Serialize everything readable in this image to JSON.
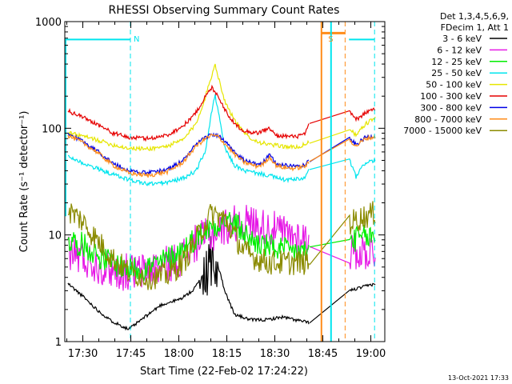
{
  "chart_data": {
    "type": "line",
    "title": "RHESSI Observing Summary Count Rates",
    "xlabel": "Start Time (22-Feb-02 17:24:22)",
    "ylabel": "Count Rate (s⁻¹ detector⁻¹)",
    "y_scale": "log",
    "ylim": [
      1,
      1000
    ],
    "xlim_minutes": [
      0,
      100
    ],
    "x_tick_labels": [
      "17:30",
      "17:45",
      "18:00",
      "18:15",
      "18:30",
      "18:45",
      "19:00"
    ],
    "x_tick_minutes": [
      5.63,
      20.63,
      35.63,
      50.63,
      65.63,
      80.63,
      95.63
    ],
    "y_tick_labels": [
      "1",
      "10",
      "100",
      "1000"
    ],
    "y_tick_values": [
      1,
      10,
      100,
      1000
    ],
    "legend_header": [
      "Det 1,3,4,5,6,9,",
      "FDecim 1, Att 1"
    ],
    "footer_date": "13-Oct-2021 17:33",
    "annotations": [
      {
        "text": "N",
        "color": "#00e5ee",
        "minute": 20.5
      },
      {
        "text": "S",
        "color": "#ff8c1a",
        "minute": 81.3
      }
    ],
    "series": [
      {
        "name": "3 - 6 keV",
        "color": "#000000",
        "points": [
          [
            1,
            3.5
          ],
          [
            6,
            2.6
          ],
          [
            10,
            2
          ],
          [
            14,
            1.6
          ],
          [
            20,
            1.3
          ],
          [
            25,
            1.7
          ],
          [
            30,
            2.2
          ],
          [
            36,
            2.5
          ],
          [
            40,
            3
          ],
          [
            44,
            4.5
          ],
          [
            46,
            6
          ],
          [
            48,
            5
          ],
          [
            50,
            3
          ],
          [
            53,
            1.8
          ],
          [
            58,
            1.6
          ],
          [
            63,
            1.6
          ],
          [
            68,
            1.7
          ],
          [
            72,
            1.6
          ],
          [
            76.5,
            1.5
          ],
          [
            89,
            3
          ],
          [
            94,
            3.3
          ],
          [
            97,
            3.5
          ]
        ]
      },
      {
        "name": "6 - 12 keV",
        "color": "#e619e6",
        "points": [
          [
            1,
            7
          ],
          [
            6,
            6
          ],
          [
            12,
            5
          ],
          [
            18,
            4.5
          ],
          [
            24,
            4.5
          ],
          [
            30,
            5
          ],
          [
            36,
            6
          ],
          [
            42,
            9
          ],
          [
            46,
            10
          ],
          [
            50,
            12
          ],
          [
            54,
            13
          ],
          [
            58,
            13
          ],
          [
            62,
            12
          ],
          [
            66,
            11
          ],
          [
            70,
            10
          ],
          [
            74,
            9.5
          ],
          [
            76.5,
            9
          ],
          [
            89,
            7
          ],
          [
            94,
            7
          ],
          [
            97,
            7
          ]
        ]
      },
      {
        "name": "12 - 25 keV",
        "color": "#00ee00",
        "points": [
          [
            1,
            9
          ],
          [
            6,
            8
          ],
          [
            12,
            6
          ],
          [
            18,
            5
          ],
          [
            24,
            4.8
          ],
          [
            30,
            5.5
          ],
          [
            36,
            7
          ],
          [
            42,
            10
          ],
          [
            46,
            12
          ],
          [
            50,
            14
          ],
          [
            54,
            12
          ],
          [
            58,
            9
          ],
          [
            62,
            8
          ],
          [
            66,
            7.5
          ],
          [
            70,
            7
          ],
          [
            74,
            7
          ],
          [
            76.5,
            7
          ],
          [
            89,
            9
          ],
          [
            94,
            9.5
          ],
          [
            97,
            9.5
          ]
        ]
      },
      {
        "name": "25 - 50 keV",
        "color": "#00e5ee",
        "points": [
          [
            1,
            55
          ],
          [
            5,
            48
          ],
          [
            10,
            42
          ],
          [
            15,
            37
          ],
          [
            20,
            33
          ],
          [
            26,
            30
          ],
          [
            32,
            31
          ],
          [
            37,
            34
          ],
          [
            41,
            40
          ],
          [
            44,
            62
          ],
          [
            46,
            150
          ],
          [
            47,
            200
          ],
          [
            48,
            140
          ],
          [
            50,
            65
          ],
          [
            53,
            45
          ],
          [
            56,
            40
          ],
          [
            60,
            38
          ],
          [
            64,
            36
          ],
          [
            68,
            33
          ],
          [
            72,
            33
          ],
          [
            75,
            34
          ],
          [
            76.5,
            42
          ],
          [
            89,
            50
          ],
          [
            91,
            35
          ],
          [
            94,
            48
          ],
          [
            97,
            50
          ]
        ]
      },
      {
        "name": "50 - 100 keV",
        "color": "#e6e600",
        "points": [
          [
            1,
            90
          ],
          [
            5,
            85
          ],
          [
            10,
            78
          ],
          [
            15,
            70
          ],
          [
            20,
            65
          ],
          [
            26,
            64
          ],
          [
            32,
            68
          ],
          [
            37,
            78
          ],
          [
            41,
            110
          ],
          [
            44,
            200
          ],
          [
            46,
            320
          ],
          [
            47,
            400
          ],
          [
            48,
            300
          ],
          [
            50,
            180
          ],
          [
            53,
            120
          ],
          [
            56,
            90
          ],
          [
            60,
            75
          ],
          [
            64,
            70
          ],
          [
            68,
            68
          ],
          [
            72,
            66
          ],
          [
            75,
            70
          ],
          [
            76.5,
            75
          ],
          [
            89,
            100
          ],
          [
            91,
            85
          ],
          [
            94,
            110
          ],
          [
            97,
            125
          ]
        ]
      },
      {
        "name": "100 - 300 keV",
        "color": "#e60000",
        "points": [
          [
            1,
            145
          ],
          [
            5,
            130
          ],
          [
            10,
            110
          ],
          [
            15,
            90
          ],
          [
            20,
            82
          ],
          [
            26,
            80
          ],
          [
            32,
            86
          ],
          [
            37,
            105
          ],
          [
            41,
            140
          ],
          [
            44,
            200
          ],
          [
            46,
            240
          ],
          [
            47,
            220
          ],
          [
            48,
            200
          ],
          [
            50,
            150
          ],
          [
            53,
            110
          ],
          [
            56,
            95
          ],
          [
            60,
            90
          ],
          [
            64,
            100
          ],
          [
            66,
            85
          ],
          [
            68,
            85
          ],
          [
            72,
            83
          ],
          [
            75,
            88
          ],
          [
            76.5,
            110
          ],
          [
            89,
            145
          ],
          [
            91,
            120
          ],
          [
            94,
            140
          ],
          [
            97,
            150
          ]
        ]
      },
      {
        "name": "300 - 800 keV",
        "color": "#0000e6",
        "points": [
          [
            1,
            88
          ],
          [
            5,
            78
          ],
          [
            10,
            62
          ],
          [
            15,
            47
          ],
          [
            20,
            40
          ],
          [
            26,
            38
          ],
          [
            32,
            41
          ],
          [
            37,
            50
          ],
          [
            41,
            70
          ],
          [
            44,
            82
          ],
          [
            46,
            88
          ],
          [
            48,
            85
          ],
          [
            50,
            75
          ],
          [
            53,
            60
          ],
          [
            56,
            50
          ],
          [
            60,
            46
          ],
          [
            62,
            48
          ],
          [
            64,
            56
          ],
          [
            66,
            47
          ],
          [
            68,
            45
          ],
          [
            72,
            44
          ],
          [
            75,
            46
          ],
          [
            76.5,
            50
          ],
          [
            89,
            80
          ],
          [
            91,
            70
          ],
          [
            94,
            82
          ],
          [
            97,
            85
          ]
        ]
      },
      {
        "name": "800 - 7000 keV",
        "color": "#ff8c1a",
        "points": [
          [
            1,
            85
          ],
          [
            5,
            75
          ],
          [
            10,
            60
          ],
          [
            15,
            45
          ],
          [
            20,
            38
          ],
          [
            26,
            36
          ],
          [
            32,
            39
          ],
          [
            37,
            48
          ],
          [
            41,
            68
          ],
          [
            44,
            80
          ],
          [
            46,
            86
          ],
          [
            48,
            83
          ],
          [
            50,
            72
          ],
          [
            53,
            57
          ],
          [
            56,
            48
          ],
          [
            60,
            44
          ],
          [
            62,
            46
          ],
          [
            64,
            54
          ],
          [
            66,
            45
          ],
          [
            68,
            43
          ],
          [
            72,
            42
          ],
          [
            75,
            44
          ],
          [
            76.5,
            48
          ],
          [
            89,
            78
          ],
          [
            91,
            68
          ],
          [
            94,
            80
          ],
          [
            97,
            83
          ]
        ]
      },
      {
        "name": "7000 - 15000 keV",
        "color": "#8b8b00",
        "points": [
          [
            1,
            17
          ],
          [
            5,
            14
          ],
          [
            10,
            9
          ],
          [
            15,
            6
          ],
          [
            20,
            4.5
          ],
          [
            26,
            4
          ],
          [
            32,
            4.2
          ],
          [
            37,
            5.5
          ],
          [
            41,
            9
          ],
          [
            44,
            13
          ],
          [
            46,
            16
          ],
          [
            48,
            15
          ],
          [
            50,
            14
          ],
          [
            53,
            10
          ],
          [
            56,
            7
          ],
          [
            60,
            6
          ],
          [
            64,
            5.5
          ],
          [
            68,
            5.5
          ],
          [
            72,
            5.5
          ],
          [
            75,
            5.5
          ],
          [
            76.5,
            5.5
          ],
          [
            89,
            13
          ],
          [
            94,
            15
          ],
          [
            97,
            16
          ]
        ]
      }
    ]
  }
}
